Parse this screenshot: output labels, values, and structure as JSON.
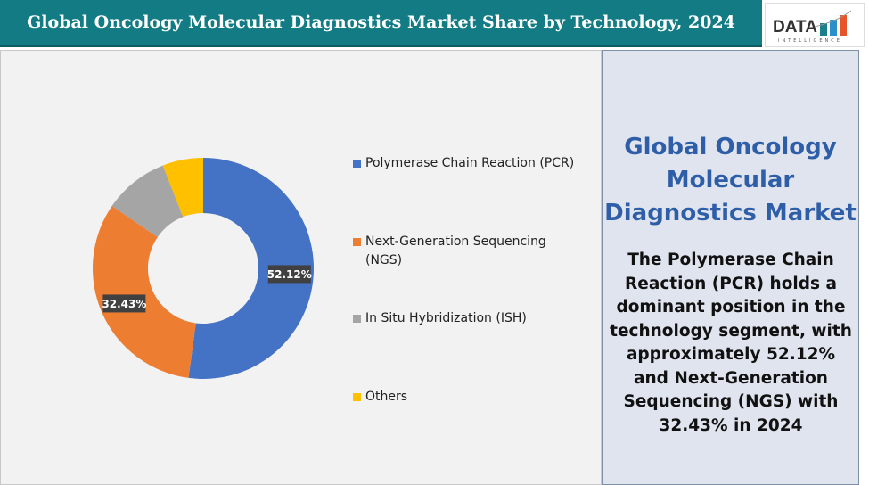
{
  "header": {
    "title": "Global Oncology Molecular Diagnostics Market Share by Technology, 2024"
  },
  "logo": {
    "text": "DATA",
    "subtext": "INTELLIGENCE"
  },
  "side": {
    "title": "Global Oncology Molecular Diagnostics Market",
    "text": "The Polymerase Chain Reaction (PCR) holds a dominant position in the technology segment, with approximately 52.12% and Next-Generation Sequencing (NGS) with 32.43% in 2024"
  },
  "chart_data": {
    "type": "pie",
    "donut": true,
    "categories": [
      "Polymerase Chain Reaction (PCR)",
      "Next-Generation Sequencing (NGS)",
      "In Situ Hybridization (ISH)",
      "Others"
    ],
    "values": [
      52.12,
      32.43,
      9.5,
      5.95
    ],
    "colors": [
      "#4472c4",
      "#ed7d31",
      "#a5a5a5",
      "#ffc000"
    ],
    "data_labels": [
      "52.12%",
      "32.43%",
      "",
      ""
    ],
    "legend": "right"
  }
}
